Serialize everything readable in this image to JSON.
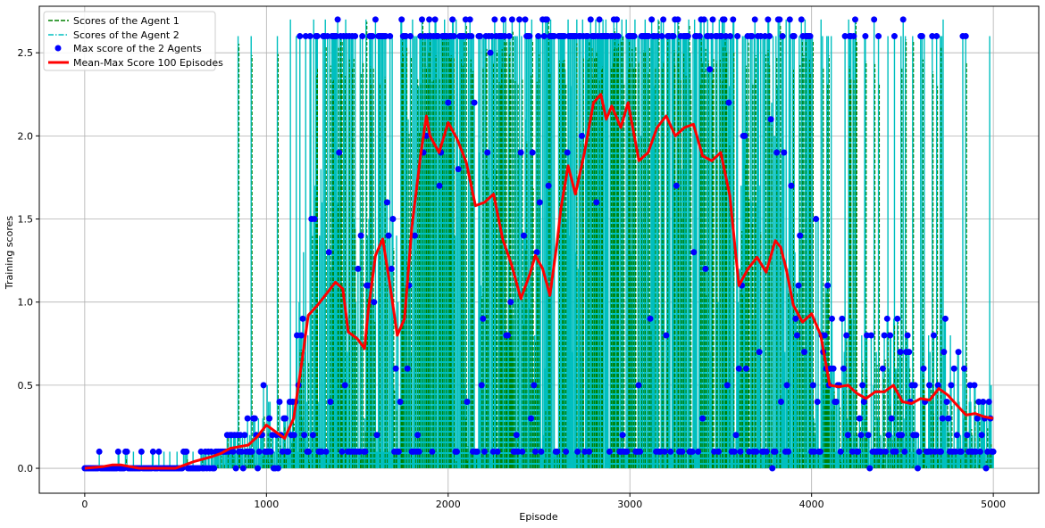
{
  "chart_data": {
    "type": "line",
    "xlabel": "Episode",
    "ylabel": "Training scores",
    "xlim": [
      -250,
      5250
    ],
    "ylim": [
      -0.15,
      2.78
    ],
    "xticks": [
      0,
      1000,
      2000,
      3000,
      4000,
      5000
    ],
    "xtick_labels": [
      "0",
      "1000",
      "2000",
      "3000",
      "4000",
      "5000"
    ],
    "yticks": [
      0.0,
      0.5,
      1.0,
      1.5,
      2.0,
      2.5
    ],
    "ytick_labels": [
      "0.0",
      "0.5",
      "1.0",
      "1.5",
      "2.0",
      "2.5"
    ],
    "grid": true,
    "legend_position": "upper-left",
    "episodes": 5000,
    "series": [
      {
        "name": "Scores of the Agent 1",
        "style": "dashed",
        "color": "#008000"
      },
      {
        "name": "Scores of the Agent 2",
        "style": "dashdot",
        "color": "#00bfbf"
      },
      {
        "name": "Max score of the 2 Agents",
        "style": "marker",
        "color": "#0000ff"
      },
      {
        "name": "Mean-Max Score 100 Episodes",
        "style": "solid",
        "color": "#ff0000",
        "x": [
          0,
          100,
          150,
          200,
          300,
          400,
          500,
          550,
          600,
          700,
          750,
          800,
          900,
          950,
          1000,
          1050,
          1100,
          1150,
          1200,
          1230,
          1280,
          1330,
          1380,
          1420,
          1450,
          1500,
          1540,
          1560,
          1600,
          1640,
          1680,
          1720,
          1760,
          1800,
          1850,
          1880,
          1900,
          1950,
          2000,
          2050,
          2100,
          2150,
          2200,
          2250,
          2300,
          2350,
          2400,
          2450,
          2480,
          2520,
          2560,
          2600,
          2620,
          2660,
          2700,
          2750,
          2800,
          2840,
          2870,
          2900,
          2950,
          2990,
          3050,
          3100,
          3150,
          3200,
          3250,
          3300,
          3350,
          3400,
          3450,
          3500,
          3550,
          3600,
          3650,
          3700,
          3750,
          3800,
          3830,
          3860,
          3900,
          3950,
          4000,
          4050,
          4100,
          4150,
          4200,
          4250,
          4300,
          4350,
          4400,
          4450,
          4500,
          4550,
          4600,
          4650,
          4700,
          4750,
          4800,
          4850,
          4900,
          4950,
          5000
        ],
        "y": [
          0.0,
          0.01,
          0.02,
          0.02,
          0.0,
          0.0,
          0.0,
          0.02,
          0.04,
          0.07,
          0.09,
          0.12,
          0.14,
          0.19,
          0.26,
          0.22,
          0.18,
          0.3,
          0.68,
          0.92,
          0.98,
          1.05,
          1.12,
          1.08,
          0.82,
          0.78,
          0.72,
          0.95,
          1.28,
          1.38,
          1.1,
          0.8,
          0.9,
          1.45,
          1.9,
          2.12,
          2.0,
          1.9,
          2.08,
          1.98,
          1.84,
          1.58,
          1.6,
          1.65,
          1.38,
          1.22,
          1.02,
          1.17,
          1.28,
          1.2,
          1.04,
          1.36,
          1.56,
          1.82,
          1.65,
          1.9,
          2.2,
          2.25,
          2.1,
          2.18,
          2.05,
          2.2,
          1.85,
          1.9,
          2.05,
          2.12,
          2.0,
          2.05,
          2.07,
          1.88,
          1.85,
          1.9,
          1.64,
          1.1,
          1.2,
          1.27,
          1.18,
          1.37,
          1.33,
          1.2,
          0.98,
          0.88,
          0.93,
          0.8,
          0.5,
          0.49,
          0.5,
          0.45,
          0.42,
          0.46,
          0.46,
          0.5,
          0.4,
          0.39,
          0.42,
          0.41,
          0.48,
          0.44,
          0.38,
          0.32,
          0.33,
          0.31,
          0.3
        ]
      }
    ],
    "max_score_levels": [
      0.0,
      0.1,
      0.2,
      0.3,
      0.4,
      0.5,
      0.6,
      0.7,
      0.8,
      0.9,
      1.0,
      1.1,
      1.2,
      1.3,
      1.4,
      1.5,
      1.6,
      1.7,
      1.8,
      1.9,
      2.0,
      2.1,
      2.2,
      2.3,
      2.4,
      2.5,
      2.6,
      2.7
    ]
  }
}
